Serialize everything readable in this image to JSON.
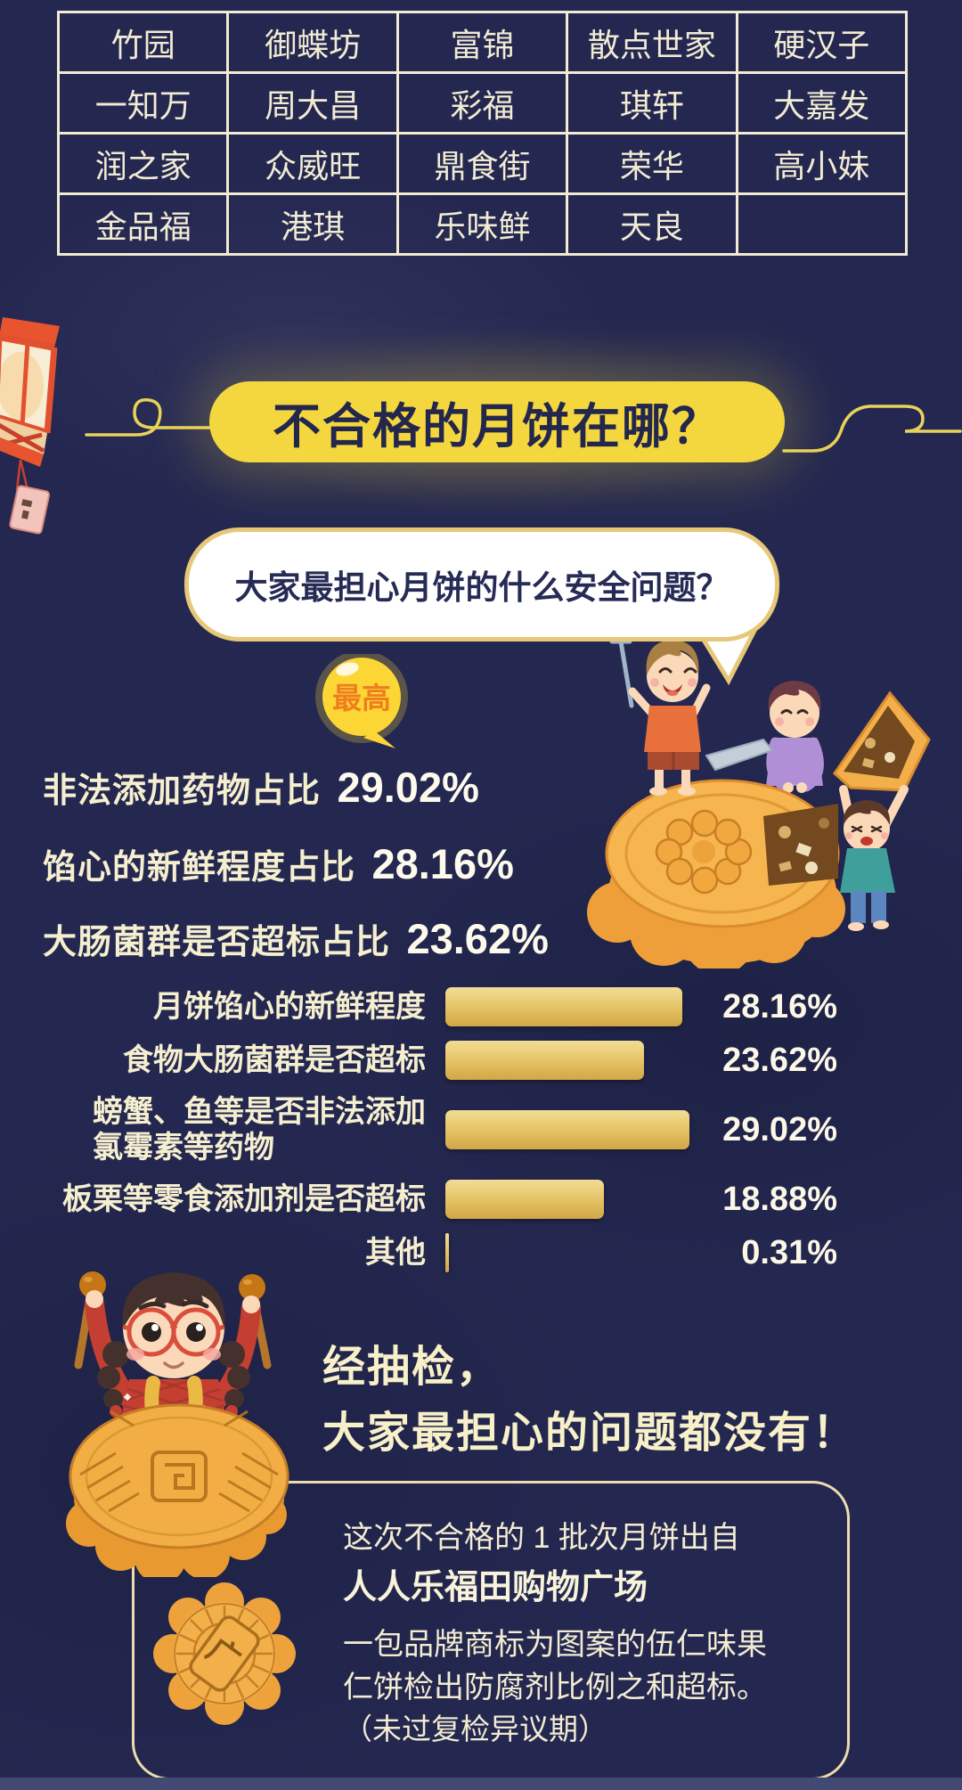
{
  "brand_table": {
    "rows": [
      [
        "竹园",
        "御蝶坊",
        "富锦",
        "散点世家",
        "硬汉子"
      ],
      [
        "一知万",
        "周大昌",
        "彩福",
        "琪轩",
        "大嘉发"
      ],
      [
        "润之家",
        "众威旺",
        "鼎食街",
        "荣华",
        "高小妹"
      ],
      [
        "金品福",
        "港琪",
        "乐味鲜",
        "天良",
        ""
      ]
    ]
  },
  "section_title": "不合格的月饼在哪？",
  "question_bubble": "大家最担心月饼的什么安全问题？",
  "highest_badge": "最高",
  "concern_stats": [
    {
      "label": "非法添加药物占比",
      "value": "29.02%"
    },
    {
      "label": "馅心的新鲜程度占比",
      "value": "28.16%"
    },
    {
      "label": "大肠菌群是否超标占比",
      "value": "23.62%"
    }
  ],
  "chart_data": {
    "type": "bar",
    "orientation": "horizontal",
    "title": "",
    "categories": [
      "月饼馅心的新鲜程度",
      "食物大肠菌群是否超标",
      "螃蟹、鱼等是否非法添加\n氯霉素等药物",
      "板栗等零食添加剂是否超标",
      "其他"
    ],
    "values": [
      28.16,
      23.62,
      29.02,
      18.88,
      0.31
    ],
    "value_labels": [
      "28.16%",
      "23.62%",
      "29.02%",
      "18.88%",
      "0.31%"
    ],
    "xlim": [
      0,
      30
    ],
    "bar_color": "#e3bc5e",
    "grid": false,
    "legend": false
  },
  "conclusion": {
    "line1": "经抽检，",
    "line2": "大家最担心的问题都没有！"
  },
  "detail_box": {
    "intro": "这次不合格的 1 批次月饼出自",
    "store": "人人乐福田购物广场",
    "desc_line1": "一包品牌商标为图案的伍仁味果",
    "desc_line2": "仁饼检出防腐剂比例之和超标。",
    "note": "（未过复检异议期）",
    "stamp_character": "广"
  },
  "colors": {
    "background": "#242850",
    "banner_yellow": "#f4d73f",
    "cream_text": "#f3ecd2",
    "bar_gold": "#e3bc5e",
    "badge_orange": "#ee7f1f",
    "bubble_border_gold": "#e7c878"
  }
}
